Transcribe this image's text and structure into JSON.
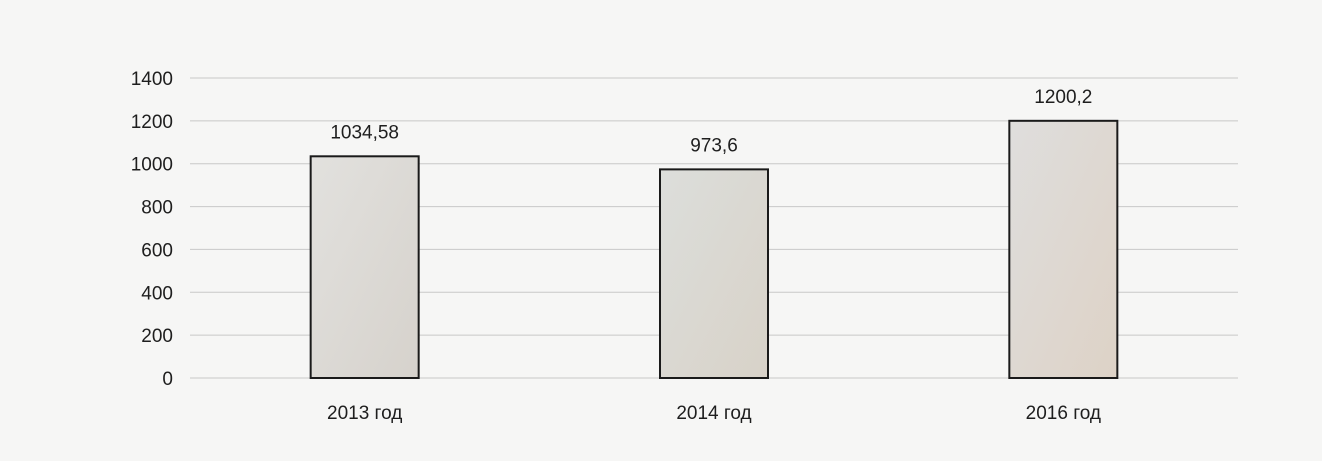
{
  "chart_data": {
    "type": "bar",
    "categories": [
      "2013 год",
      "2014 год",
      "2016 год"
    ],
    "values": [
      1034.58,
      973.6,
      1200.2
    ],
    "value_labels": [
      "1034,58",
      "973,6",
      "1200,2"
    ],
    "ylim": [
      0,
      1400
    ],
    "y_ticks": [
      0,
      200,
      400,
      600,
      800,
      1000,
      1200,
      1400
    ],
    "title": "",
    "xlabel": "",
    "ylabel": "",
    "grid": true,
    "colors": {
      "bar_fills": [
        "#dcd9d4",
        "#d9d9d3",
        "#ded8d2"
      ],
      "bar_border": "#1a1a1a",
      "grid": "#c8c8c8",
      "background": "#f6f6f5"
    }
  }
}
